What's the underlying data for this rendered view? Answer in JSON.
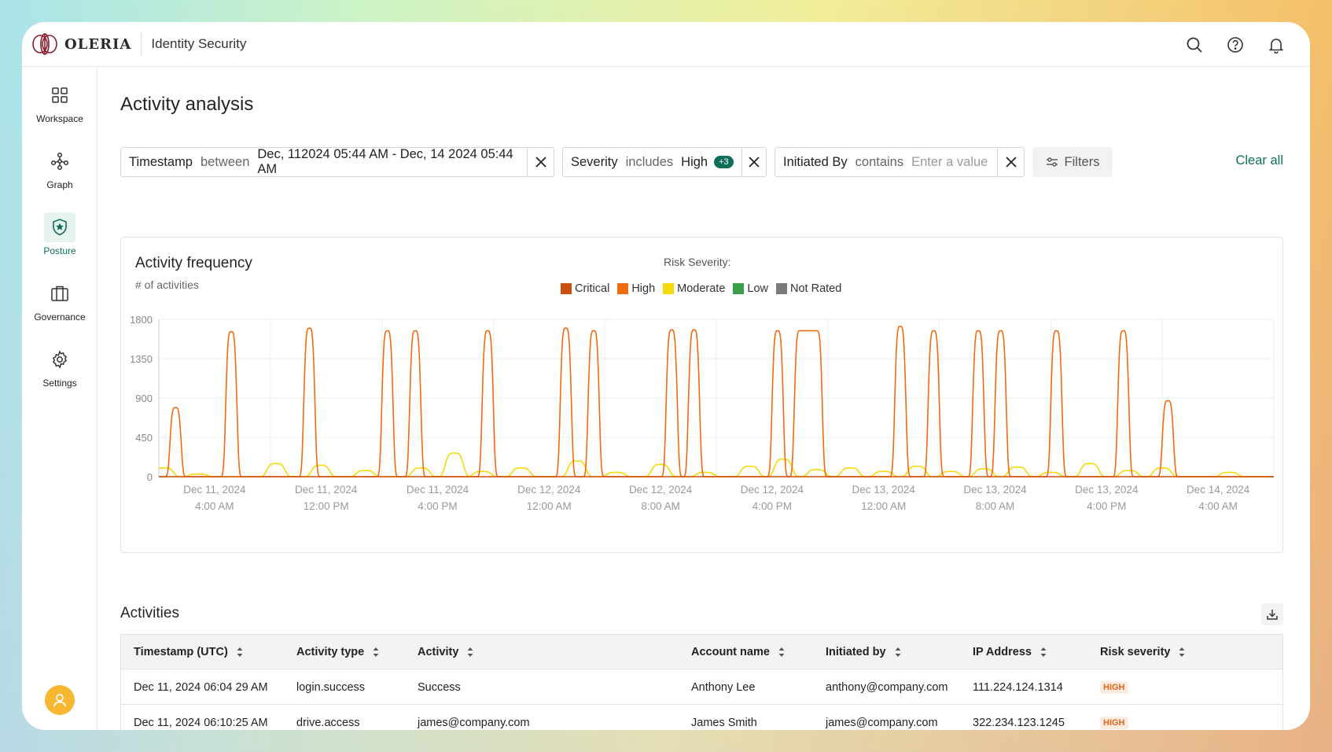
{
  "app": {
    "logo_text": "OLERIA",
    "product": "Identity Security"
  },
  "sidebar": {
    "items": [
      {
        "label": "Workspace",
        "icon": "grid-icon",
        "active": false
      },
      {
        "label": "Graph",
        "icon": "graph-icon",
        "active": false
      },
      {
        "label": "Posture",
        "icon": "shield-star-icon",
        "active": true
      },
      {
        "label": "Governance",
        "icon": "briefcase-icon",
        "active": false
      },
      {
        "label": "Settings",
        "icon": "gear-icon",
        "active": false
      }
    ]
  },
  "page": {
    "title": "Activity analysis"
  },
  "filters": {
    "timestamp": {
      "field": "Timestamp",
      "op": "between",
      "value": "Dec, 112024 05:44 AM - Dec, 14 2024 05:44 AM"
    },
    "severity": {
      "field": "Severity",
      "op": "includes",
      "value": "High",
      "extra": "+3"
    },
    "initiated": {
      "field": "Initiated By",
      "op": "contains",
      "placeholder": "Enter a value"
    },
    "filters_label": "Filters",
    "clear_all": "Clear all"
  },
  "chart_data": {
    "type": "line",
    "title": "Activity frequency",
    "ylabel": "# of activities",
    "legend_title": "Risk Severity:",
    "legend": [
      {
        "name": "Critical",
        "color": "#c9500f"
      },
      {
        "name": "High",
        "color": "#f06a12"
      },
      {
        "name": "Moderate",
        "color": "#f5d90a"
      },
      {
        "name": "Low",
        "color": "#3c9f4c"
      },
      {
        "name": "Not Rated",
        "color": "#7a7a7a"
      }
    ],
    "ylim": [
      0,
      1800
    ],
    "yticks": [
      "1800",
      "1350",
      "900",
      "450",
      "0"
    ],
    "xticks": [
      {
        "l1": "Dec 11, 2024",
        "l2": "4:00 AM"
      },
      {
        "l1": "Dec 11, 2024",
        "l2": "12:00 PM"
      },
      {
        "l1": "Dec 11, 2024",
        "l2": "4:00 PM"
      },
      {
        "l1": "Dec 12, 2024",
        "l2": "12:00 AM"
      },
      {
        "l1": "Dec 12, 2024",
        "l2": "8:00 AM"
      },
      {
        "l1": "Dec 12, 2024",
        "l2": "4:00 PM"
      },
      {
        "l1": "Dec 13, 2024",
        "l2": "12:00 AM"
      },
      {
        "l1": "Dec 13, 2024",
        "l2": "8:00 AM"
      },
      {
        "l1": "Dec 13, 2024",
        "l2": "4:00 PM"
      },
      {
        "l1": "Dec 14, 2024",
        "l2": "4:00 AM"
      }
    ],
    "x_range": [
      0,
      100
    ],
    "series": [
      {
        "name": "High",
        "color": "#f06a12",
        "peaks": [
          [
            1.5,
            790
          ],
          [
            6.5,
            1660
          ],
          [
            13.5,
            1700
          ],
          [
            20.5,
            1670
          ],
          [
            23.0,
            1670
          ],
          [
            29.5,
            1670
          ],
          [
            36.5,
            1700
          ],
          [
            39.0,
            1670
          ],
          [
            46.0,
            1680
          ],
          [
            48.0,
            1680
          ],
          [
            55.5,
            1670
          ],
          [
            66.5,
            1720
          ],
          [
            69.5,
            1670
          ],
          [
            73.5,
            1670
          ],
          [
            75.5,
            1670
          ],
          [
            80.5,
            1670
          ],
          [
            86.5,
            1670
          ],
          [
            90.5,
            870
          ]
        ],
        "plateau": [
          [
            57.5,
            1670
          ],
          [
            59.0,
            1670
          ]
        ]
      },
      {
        "name": "Moderate",
        "color": "#f5d90a",
        "peaks": [
          [
            0.5,
            100
          ],
          [
            3.5,
            30
          ],
          [
            10.5,
            150
          ],
          [
            14.5,
            130
          ],
          [
            18.5,
            70
          ],
          [
            23.5,
            100
          ],
          [
            26.5,
            270
          ],
          [
            29.0,
            60
          ],
          [
            32.5,
            100
          ],
          [
            37.5,
            180
          ],
          [
            41.0,
            50
          ],
          [
            45.0,
            140
          ],
          [
            49.0,
            50
          ],
          [
            53.0,
            120
          ],
          [
            56.0,
            200
          ],
          [
            59.0,
            80
          ],
          [
            62.0,
            100
          ],
          [
            65.0,
            60
          ],
          [
            68.0,
            120
          ],
          [
            71.0,
            60
          ],
          [
            74.0,
            90
          ],
          [
            77.0,
            110
          ],
          [
            80.0,
            50
          ],
          [
            83.5,
            150
          ],
          [
            87.0,
            70
          ],
          [
            90.0,
            100
          ],
          [
            96.0,
            50
          ]
        ]
      }
    ]
  },
  "activities": {
    "title": "Activities",
    "columns": [
      "Timestamp (UTC)",
      "Activity type",
      "Activity",
      "Account name",
      "Initiated by",
      "IP Address",
      "Risk severity"
    ],
    "rows": [
      [
        "Dec 11, 2024 06:04 29 AM",
        "login.success",
        "Success",
        "Anthony Lee",
        "anthony@company.com",
        "111.224.124.1314",
        "HIGH"
      ],
      [
        "Dec 11, 2024 06:10:25 AM",
        "drive.access",
        "james@company.com",
        "James Smith",
        "james@company.com",
        "322.234.123.1245",
        "HIGH"
      ]
    ]
  }
}
